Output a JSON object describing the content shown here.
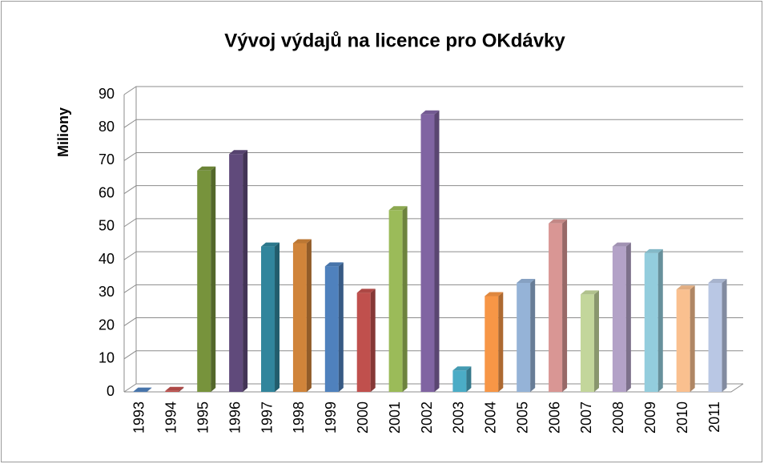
{
  "chart_data": {
    "type": "bar3d",
    "title": "Vývoj výdajů na licence pro OKdávky",
    "ylabel": "Miliony",
    "categories": [
      "1993",
      "1994",
      "1995",
      "1996",
      "1997",
      "1998",
      "1999",
      "2000",
      "2001",
      "2002",
      "2003",
      "2004",
      "2005",
      "2006",
      "2007",
      "2008",
      "2009",
      "2010",
      "2011"
    ],
    "values": [
      0.1,
      0.3,
      67,
      72,
      44,
      45,
      38,
      30,
      55,
      84,
      6.5,
      29,
      33,
      51,
      29.5,
      44,
      42,
      31,
      33
    ],
    "colors": [
      "#4f81bd",
      "#c0504d",
      "#77933c",
      "#604a7b",
      "#31859c",
      "#d0843a",
      "#4f81bd",
      "#c0504d",
      "#9bbb59",
      "#8064a2",
      "#4bacc6",
      "#f79646",
      "#95b3d7",
      "#d99694",
      "#c3d69b",
      "#b3a2c7",
      "#93cddd",
      "#fac08f",
      "#b9c7e4"
    ],
    "ylim": [
      0,
      90
    ],
    "yticks": [
      0,
      10,
      20,
      30,
      40,
      50,
      60,
      70,
      80,
      90
    ],
    "grid": true
  }
}
